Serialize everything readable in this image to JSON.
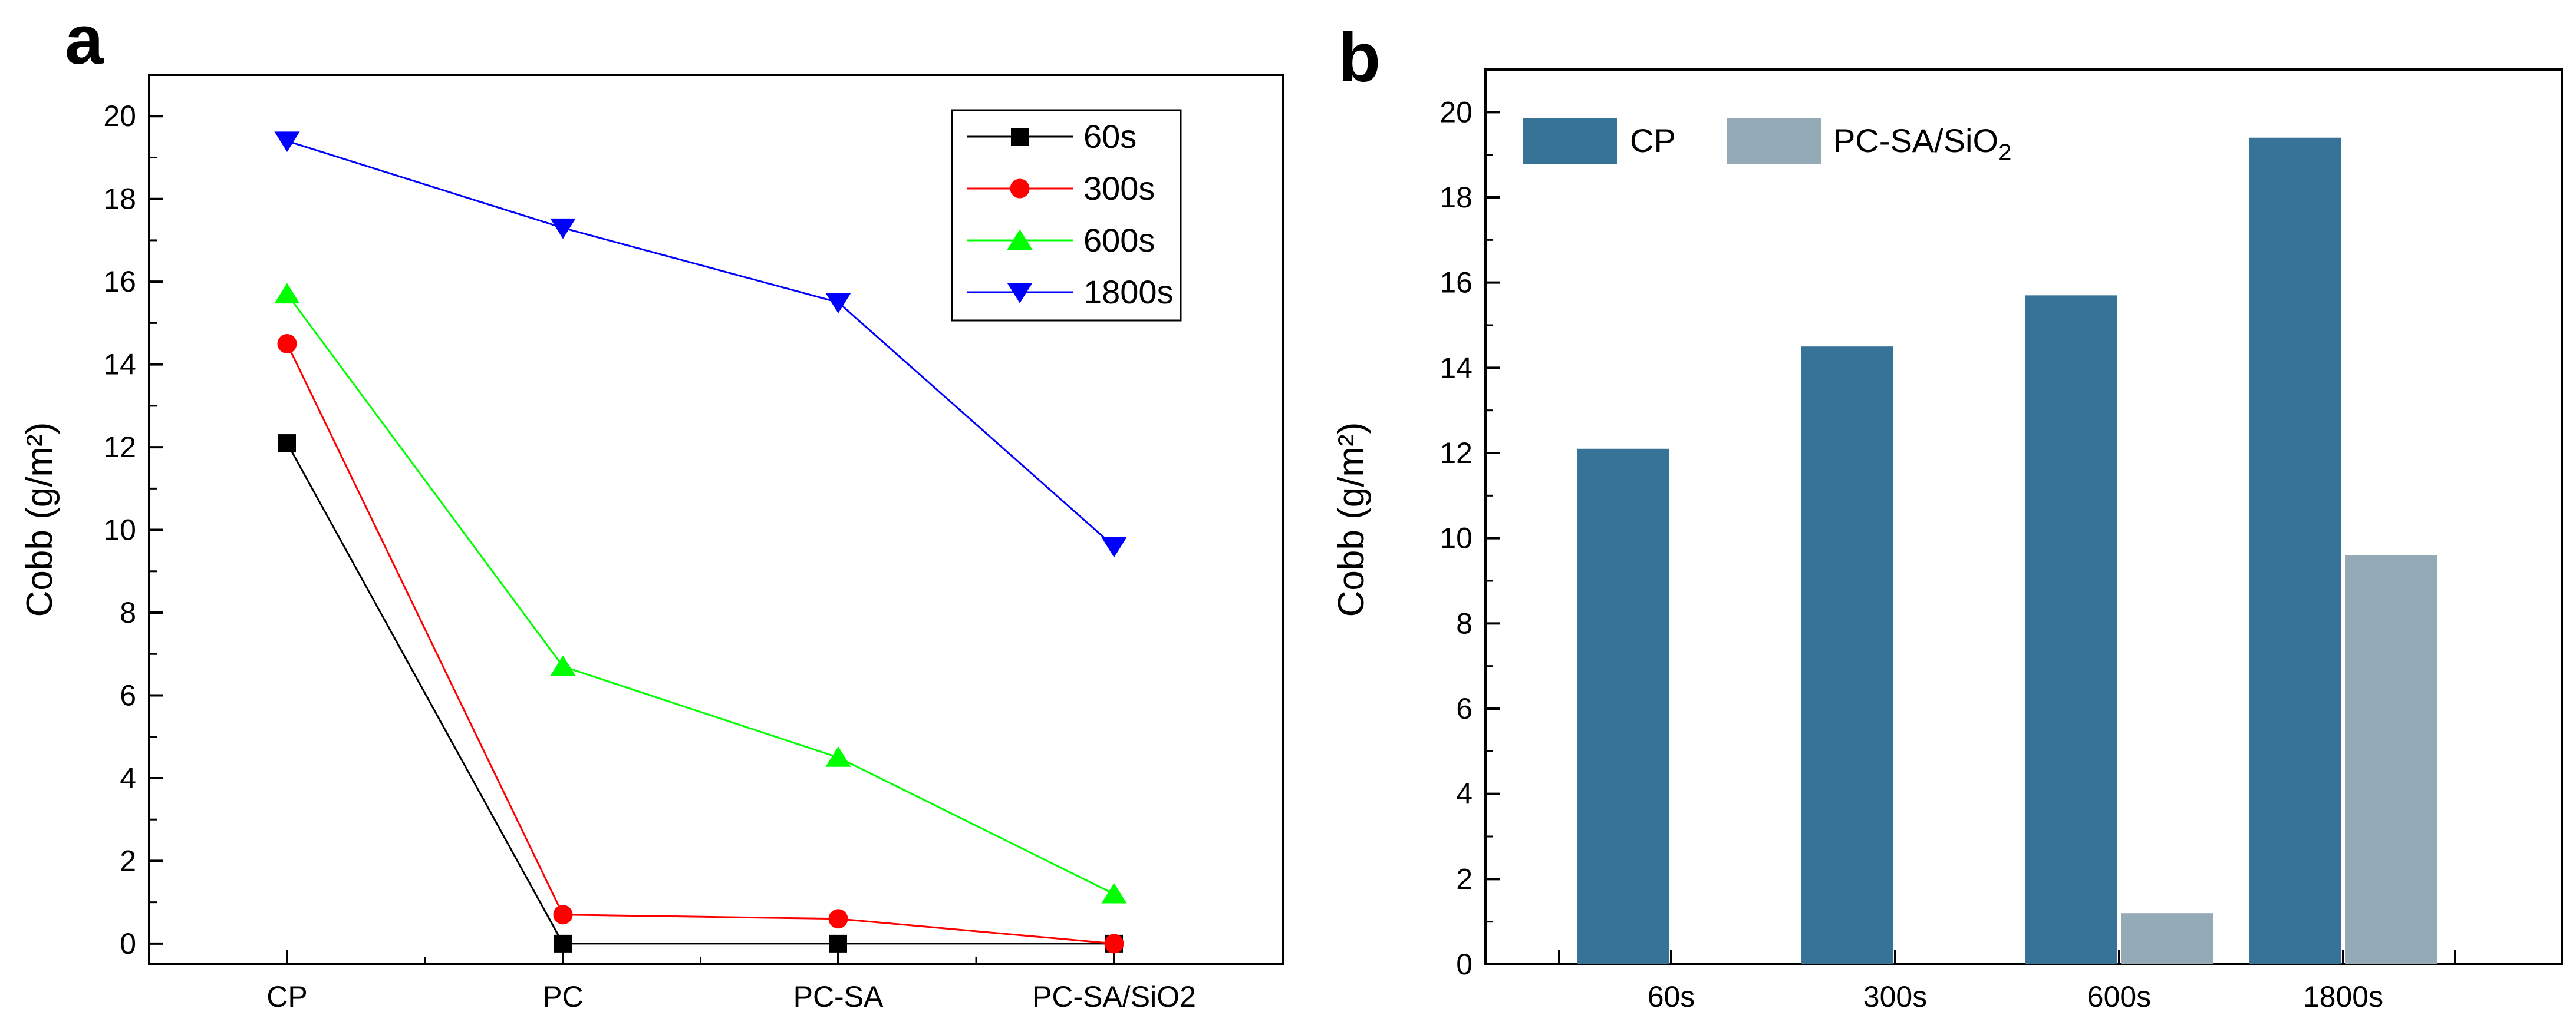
{
  "figure": {
    "panels": [
      "a",
      "b"
    ]
  },
  "chart_data": [
    {
      "panel": "a",
      "type": "line",
      "categories": [
        "CP",
        "PC",
        "PC-SA",
        "PC-SA/SiO2"
      ],
      "ylabel": "Cobb (g/m²)",
      "xlabel": "",
      "ylim": [
        -0.5,
        21
      ],
      "yticks": [
        "0",
        "2",
        "4",
        "6",
        "8",
        "10",
        "12",
        "14",
        "16",
        "18",
        "20"
      ],
      "grid": false,
      "legend": "top-right",
      "series": [
        {
          "name": "60s",
          "marker": "square",
          "color": "#000000",
          "values": [
            12.1,
            0,
            0,
            0
          ]
        },
        {
          "name": "300s",
          "marker": "circle",
          "color": "#ff0000",
          "values": [
            14.5,
            0.7,
            0.6,
            0
          ]
        },
        {
          "name": "600s",
          "marker": "triangle-up",
          "color": "#00ff00",
          "values": [
            15.7,
            6.7,
            4.5,
            1.2
          ]
        },
        {
          "name": "1800s",
          "marker": "triangle-down",
          "color": "#0000ff",
          "values": [
            19.4,
            17.3,
            15.5,
            9.6
          ]
        }
      ]
    },
    {
      "panel": "b",
      "type": "bar",
      "categories": [
        "60s",
        "300s",
        "600s",
        "1800s"
      ],
      "ylabel": "Cobb (g/m²)",
      "xlabel": "",
      "ylim": [
        0,
        21
      ],
      "yticks": [
        "0",
        "2",
        "4",
        "6",
        "8",
        "10",
        "12",
        "14",
        "16",
        "18",
        "20"
      ],
      "grid": false,
      "legend": "top-left",
      "series": [
        {
          "name": "CP",
          "color": "#367396",
          "values": [
            12.1,
            14.5,
            15.7,
            19.4
          ]
        },
        {
          "name": "PC-SA/SiO",
          "subscript": "2",
          "color": "#94aab7",
          "values": [
            0,
            0,
            1.2,
            9.6
          ]
        }
      ]
    }
  ]
}
